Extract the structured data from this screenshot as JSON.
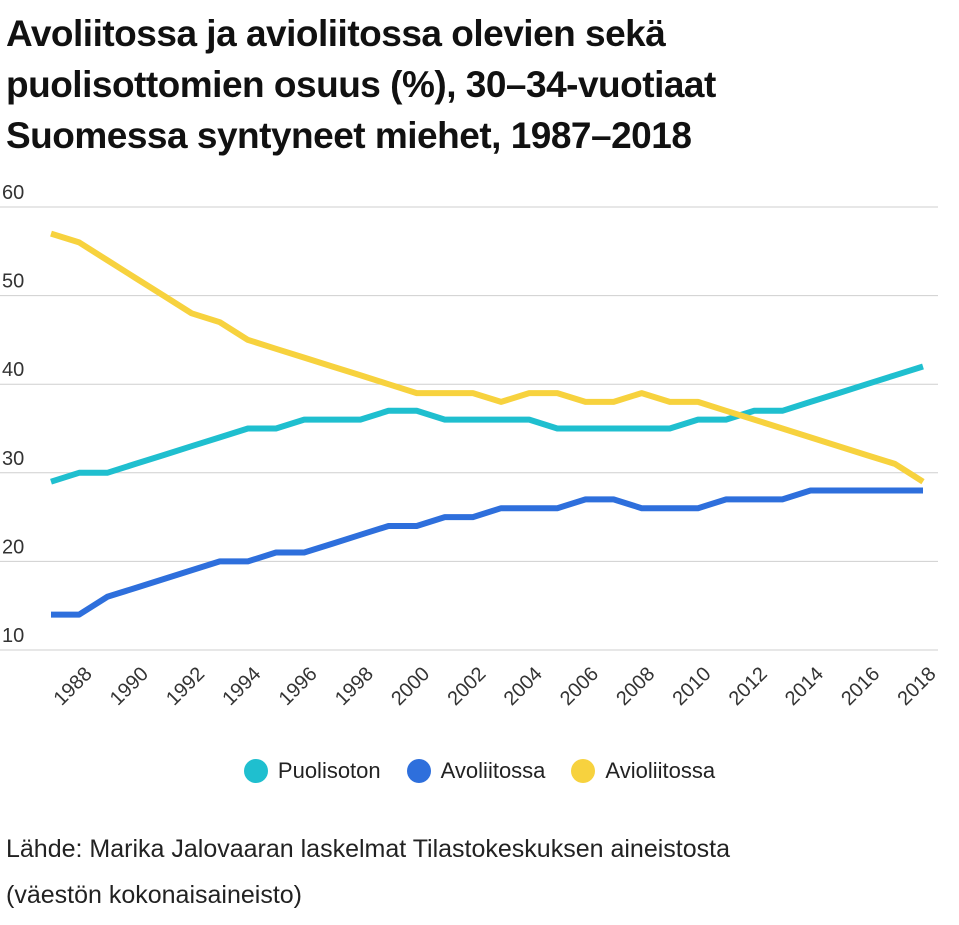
{
  "title_lines": [
    "Avoliitossa ja avioliitossa olevien sekä",
    "puolisottomien osuus (%), 30–34-vuotiaat",
    "Suomessa syntyneet miehet, 1987–2018"
  ],
  "source_lines": [
    "Lähde: Marika Jalovaaran laskelmat Tilastokeskuksen aineistosta",
    "(väestön kokonaisaineisto)"
  ],
  "colors": {
    "puolisoton": "#1fbfcf",
    "avoliitossa": "#2e6fdc",
    "avioliitossa": "#f7d23e",
    "grid": "#cfcfcf"
  },
  "chart_data": {
    "type": "line",
    "title": "Avoliitossa ja avioliitossa olevien sekä puolisottomien osuus (%), 30–34-vuotiaat Suomessa syntyneet miehet, 1987–2018",
    "xlabel": "",
    "ylabel": "",
    "ylim": [
      10,
      60
    ],
    "yticks": [
      "10",
      "20",
      "30",
      "40",
      "50",
      "60"
    ],
    "xticks": [
      "1988",
      "1990",
      "1992",
      "1994",
      "1996",
      "1998",
      "2000",
      "2002",
      "2004",
      "2006",
      "2008",
      "2010",
      "2012",
      "2014",
      "2016",
      "2018"
    ],
    "grid": true,
    "legend_position": "bottom",
    "x": [
      1987,
      1988,
      1989,
      1990,
      1991,
      1992,
      1993,
      1994,
      1995,
      1996,
      1997,
      1998,
      1999,
      2000,
      2001,
      2002,
      2003,
      2004,
      2005,
      2006,
      2007,
      2008,
      2009,
      2010,
      2011,
      2012,
      2013,
      2014,
      2015,
      2016,
      2017,
      2018
    ],
    "series": [
      {
        "name": "Puolisoton",
        "color": "#1fbfcf",
        "values": [
          29,
          30,
          30,
          31,
          32,
          33,
          34,
          35,
          35,
          36,
          36,
          36,
          37,
          37,
          36,
          36,
          36,
          36,
          35,
          35,
          35,
          35,
          35,
          36,
          36,
          37,
          37,
          38,
          39,
          40,
          41,
          42
        ]
      },
      {
        "name": "Avoliitossa",
        "color": "#2e6fdc",
        "values": [
          14,
          14,
          16,
          17,
          18,
          19,
          20,
          20,
          21,
          21,
          22,
          23,
          24,
          24,
          25,
          25,
          26,
          26,
          26,
          27,
          27,
          26,
          26,
          26,
          27,
          27,
          27,
          28,
          28,
          28,
          28,
          28
        ]
      },
      {
        "name": "Avioliitossa",
        "color": "#f7d23e",
        "values": [
          57,
          56,
          54,
          52,
          50,
          48,
          47,
          45,
          44,
          43,
          42,
          41,
          40,
          39,
          39,
          39,
          38,
          39,
          39,
          38,
          38,
          39,
          38,
          38,
          37,
          36,
          35,
          34,
          33,
          32,
          31,
          29
        ]
      }
    ]
  }
}
